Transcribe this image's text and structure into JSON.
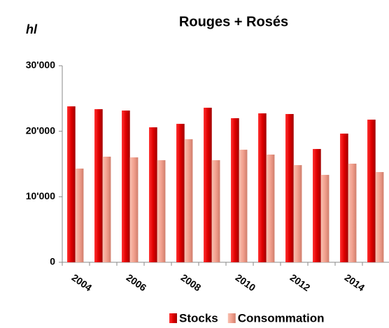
{
  "chart_data": {
    "type": "bar",
    "title": "Rouges + Rosés",
    "y_label": "hl",
    "categories": [
      "2004",
      null,
      "2006",
      null,
      "2008",
      null,
      "2010",
      null,
      "2012",
      null,
      "2014",
      null
    ],
    "series": [
      {
        "name": "Stocks",
        "color": "#e00000",
        "values": [
          23800,
          23370,
          23160,
          20600,
          21130,
          23590,
          21990,
          22730,
          22630,
          17290,
          19640,
          21770
        ]
      },
      {
        "name": "Consommation",
        "color": "#f2a08e",
        "values": [
          14300,
          16120,
          16010,
          15580,
          18780,
          15580,
          17180,
          16440,
          14830,
          13340,
          15050,
          13770
        ]
      }
    ],
    "ylim": [
      0,
      30000
    ],
    "yticks": [
      0,
      {
        "value": 10000,
        "label": "10'000"
      },
      {
        "value": 20000,
        "label": "20'000"
      },
      {
        "value": 30000,
        "label": "30'000"
      }
    ],
    "legend": "bottom"
  }
}
